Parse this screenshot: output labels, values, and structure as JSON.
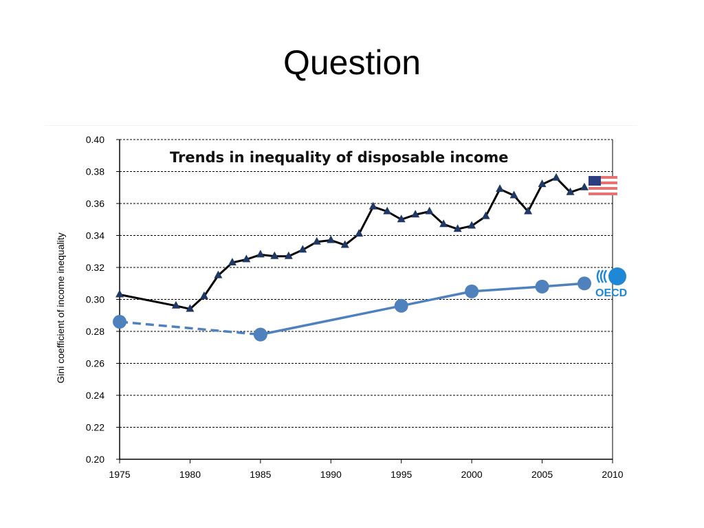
{
  "slide": {
    "title": "Question"
  },
  "logo": {
    "oecd_text": "OECD"
  },
  "chart_data": {
    "type": "line",
    "title": "Trends in inequality of disposable income",
    "xlabel": "",
    "ylabel": "Gini coefficient of income inequality",
    "xlim": [
      1975,
      2010
    ],
    "ylim": [
      0.2,
      0.4
    ],
    "x_ticks": [
      "1975",
      "1980",
      "1985",
      "1990",
      "1995",
      "2000",
      "2005",
      "2010"
    ],
    "y_ticks": [
      "0.20",
      "0.22",
      "0.24",
      "0.26",
      "0.28",
      "0.30",
      "0.32",
      "0.34",
      "0.36",
      "0.38",
      "0.40"
    ],
    "grid": "horizontal dashed",
    "legend": "icons at right end of each series",
    "series": [
      {
        "marker": "triangle",
        "color": "#000000",
        "marker_color": "#1f3864",
        "legend_icon": "us-flag-icon",
        "x": [
          1975,
          1979,
          1980,
          1981,
          1982,
          1983,
          1984,
          1985,
          1986,
          1987,
          1988,
          1989,
          1990,
          1991,
          1992,
          1993,
          1994,
          1995,
          1996,
          1997,
          1998,
          1999,
          2000,
          2001,
          2002,
          2003,
          2004,
          2005,
          2006,
          2007,
          2008
        ],
        "y": [
          0.303,
          0.296,
          0.294,
          0.302,
          0.315,
          0.323,
          0.325,
          0.328,
          0.327,
          0.327,
          0.331,
          0.336,
          0.337,
          0.334,
          0.341,
          0.358,
          0.355,
          0.35,
          0.353,
          0.355,
          0.347,
          0.344,
          0.346,
          0.352,
          0.369,
          0.365,
          0.355,
          0.372,
          0.376,
          0.367,
          0.37
        ]
      },
      {
        "marker": "circle",
        "color": "#4f81bd",
        "legend_icon": "oecd-logo-icon",
        "x": [
          1975,
          1985,
          1995,
          2000,
          2005,
          2008
        ],
        "y": [
          0.286,
          0.278,
          0.296,
          0.305,
          0.308,
          0.31
        ],
        "dashed_segments": [
          [
            1975,
            1985
          ]
        ]
      }
    ]
  }
}
